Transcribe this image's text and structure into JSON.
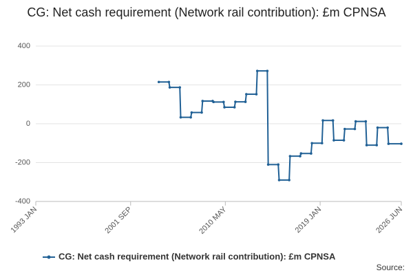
{
  "chart_data": {
    "type": "line",
    "title": "CG: Net cash requirement (Network rail contribution): £m CPNSA",
    "source": "Source:",
    "series": [
      {
        "name": "CG: Net cash requirement (Network rail contribution): £m CPNSA",
        "color": "#206095",
        "x": [
          2004.25,
          2005.17,
          2005.25,
          2006.17,
          2006.25,
          2007.17,
          2007.25,
          2008.17,
          2008.25,
          2009.17,
          2009.25,
          2010.17,
          2010.25,
          2011.17,
          2011.25,
          2012.17,
          2012.25,
          2013.17,
          2013.25,
          2014.17,
          2014.25,
          2015.17,
          2015.25,
          2016.17,
          2016.25,
          2017.17,
          2017.25,
          2018.17,
          2018.25,
          2019.17,
          2019.25,
          2020.17,
          2020.25,
          2021.17,
          2021.25,
          2022.17,
          2022.25,
          2023.17,
          2023.25,
          2024.17,
          2024.25,
          2025.17,
          2025.25,
          2026.42
        ],
        "values": [
          215,
          215,
          187,
          187,
          33,
          33,
          58,
          58,
          117,
          117,
          112,
          112,
          85,
          85,
          113,
          113,
          152,
          152,
          272,
          272,
          -210,
          -210,
          -290,
          -290,
          -167,
          -167,
          -153,
          -153,
          -100,
          -100,
          17,
          17,
          -85,
          -85,
          -27,
          -27,
          12,
          12,
          -110,
          -110,
          -20,
          -20,
          -103,
          -103
        ]
      }
    ],
    "xlim": [
      1993.0,
      2026.42
    ],
    "xticks": [
      {
        "value": 1993.0,
        "label": "1993 JAN"
      },
      {
        "value": 2001.67,
        "label": "2001 SEP"
      },
      {
        "value": 2010.33,
        "label": "2010 MAY"
      },
      {
        "value": 2019.0,
        "label": "2019 JAN"
      },
      {
        "value": 2026.42,
        "label": "2026 JUN"
      }
    ],
    "ylim": [
      -400,
      400
    ],
    "yticks": [
      -400,
      -200,
      0,
      200,
      400
    ],
    "grid": true
  }
}
